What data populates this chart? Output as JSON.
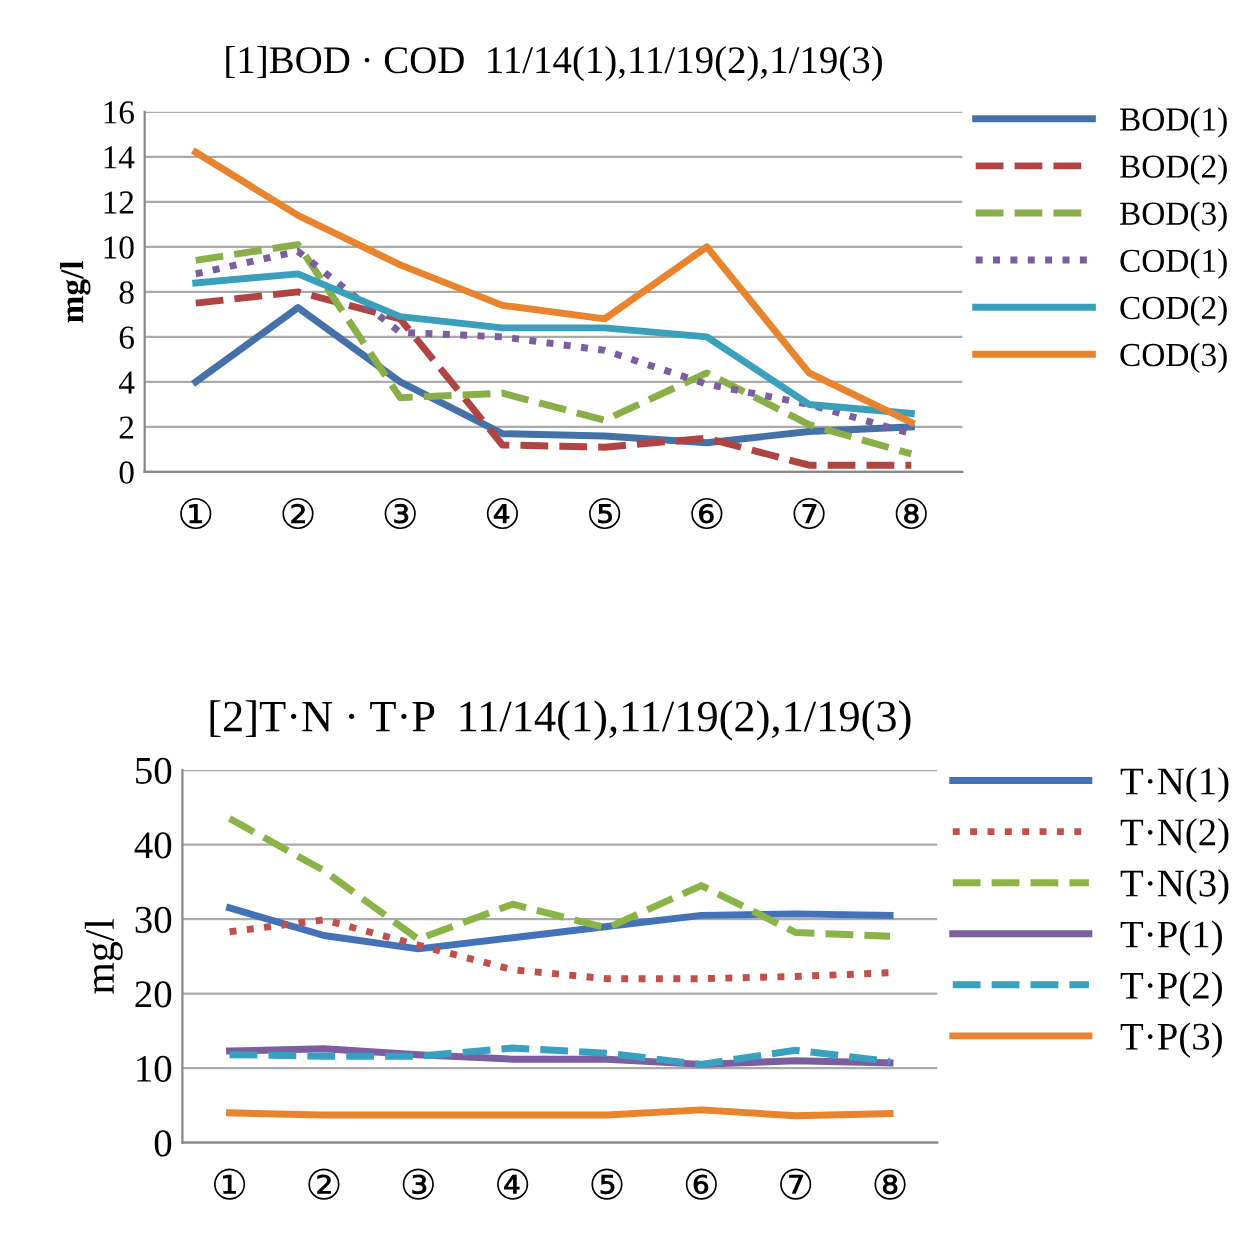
{
  "chart_data": [
    {
      "type": "line",
      "title": "[1]BOD · COD  11/14(1),11/19(2),1/19(3)",
      "ylabel": "mg/l",
      "categories": [
        "①",
        "②",
        "③",
        "④",
        "⑤",
        "⑥",
        "⑦",
        "⑧"
      ],
      "ylim": [
        0,
        16
      ],
      "yticks": [
        0,
        2,
        4,
        6,
        8,
        10,
        12,
        14,
        16
      ],
      "grid": "y",
      "legend": "right",
      "marker": "none",
      "series": [
        {
          "name": "BOD(1)",
          "color": "#4472a8",
          "line_style": "solid",
          "values": [
            4,
            7.3,
            4,
            1.7,
            1.6,
            1.3,
            1.8,
            2.0
          ]
        },
        {
          "name": "BOD(2)",
          "color": "#b04442",
          "line_style": "dashed",
          "values": [
            7.5,
            8,
            6.8,
            1.2,
            1.1,
            1.5,
            0.3,
            0.3
          ]
        },
        {
          "name": "BOD(3)",
          "color": "#8aaf48",
          "line_style": "dashed",
          "values": [
            9.4,
            10.1,
            3.3,
            3.5,
            2.3,
            4.4,
            2.1,
            0.8
          ]
        },
        {
          "name": "COD(1)",
          "color": "#7b5ea0",
          "line_style": "dotted",
          "values": [
            8.8,
            9.8,
            6.2,
            6.0,
            5.4,
            3.9,
            3.0,
            1.7
          ]
        },
        {
          "name": "COD(2)",
          "color": "#3a9fbb",
          "line_style": "solid",
          "values": [
            8.4,
            8.8,
            6.9,
            6.4,
            6.4,
            6.0,
            3.0,
            2.6
          ]
        },
        {
          "name": "COD(3)",
          "color": "#e8842e",
          "line_style": "solid",
          "values": [
            14.2,
            11.4,
            9.2,
            7.4,
            6.8,
            10.0,
            4.4,
            2.2
          ]
        }
      ]
    },
    {
      "type": "line",
      "title": "[2]T·N · T·P  11/14(1),11/19(2),1/19(3)",
      "ylabel": "mg/l",
      "categories": [
        "①",
        "②",
        "③",
        "④",
        "⑤",
        "⑥",
        "⑦",
        "⑧"
      ],
      "ylim": [
        0,
        50
      ],
      "yticks": [
        0,
        10,
        20,
        30,
        40,
        50
      ],
      "grid": "y",
      "legend": "right",
      "marker": "none",
      "series": [
        {
          "name": "T·N(1)",
          "color": "#4472b8",
          "line_style": "solid",
          "values": [
            31.5,
            27.8,
            26,
            27.5,
            29,
            30.5,
            30.7,
            30.5
          ]
        },
        {
          "name": "T·N(2)",
          "color": "#c0504d",
          "line_style": "dotted",
          "values": [
            28.3,
            29.9,
            26.5,
            23.2,
            22,
            22,
            22.3,
            22.8
          ]
        },
        {
          "name": "T·N(3)",
          "color": "#8ab448",
          "line_style": "dashed",
          "values": [
            43.5,
            36.5,
            27.3,
            32,
            28.8,
            34.5,
            28.2,
            27.7
          ]
        },
        {
          "name": "T·P(1)",
          "color": "#7b5ea0",
          "line_style": "solid",
          "values": [
            12.3,
            12.6,
            11.8,
            11.2,
            11.2,
            10.5,
            11,
            10.7
          ]
        },
        {
          "name": "T·P(2)",
          "color": "#3aa0c0",
          "line_style": "dashed",
          "values": [
            11.8,
            11.6,
            11.6,
            12.7,
            12,
            10.5,
            12.4,
            10.9
          ]
        },
        {
          "name": "T·P(3)",
          "color": "#e8842e",
          "line_style": "solid",
          "values": [
            4,
            3.7,
            3.7,
            3.7,
            3.7,
            4.4,
            3.6,
            3.9
          ]
        }
      ]
    }
  ]
}
